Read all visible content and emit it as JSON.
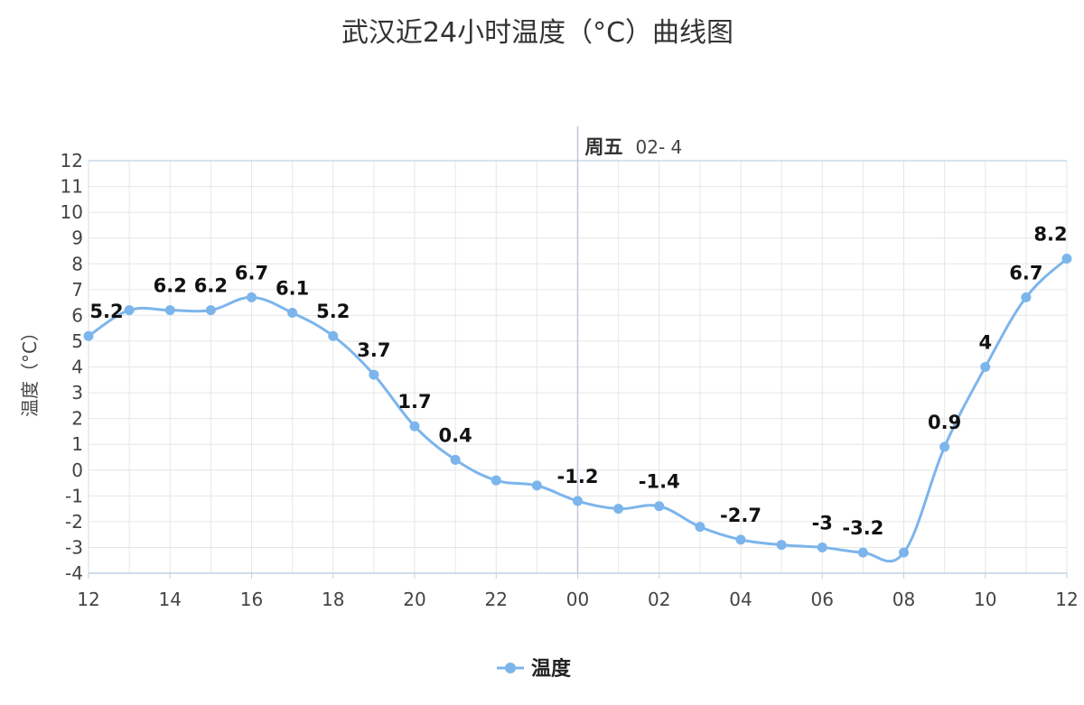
{
  "chart_data": {
    "type": "line",
    "title": "武汉近24小时温度（°C）曲线图",
    "ylabel": "温度（°C）",
    "xlabel": "",
    "ylim": [
      -4,
      12
    ],
    "yticks": [
      12,
      11,
      10,
      9,
      8,
      7,
      6,
      5,
      4,
      3,
      2,
      1,
      0,
      -1,
      -2,
      -3,
      -4
    ],
    "x": [
      "12",
      "13",
      "14",
      "15",
      "16",
      "17",
      "18",
      "19",
      "20",
      "21",
      "22",
      "23",
      "00",
      "01",
      "02",
      "03",
      "04",
      "05",
      "06",
      "07",
      "08",
      "09",
      "10",
      "11",
      "12"
    ],
    "xtick_labels": [
      "12",
      "14",
      "16",
      "18",
      "20",
      "22",
      "00",
      "02",
      "04",
      "06",
      "08",
      "10",
      "12"
    ],
    "day_marker": {
      "at": "00",
      "day": "周五",
      "date": "02- 4"
    },
    "grid": true,
    "legend": "bottom-center",
    "color": "#7cb5ec",
    "series": [
      {
        "name": "温度",
        "values": [
          5.2,
          6.2,
          6.2,
          6.2,
          6.7,
          6.1,
          5.2,
          3.7,
          1.7,
          0.4,
          -0.4,
          -0.6,
          -1.2,
          -1.5,
          -1.4,
          -2.2,
          -2.7,
          -2.9,
          -3.0,
          -3.2,
          -3.2,
          0.9,
          4.0,
          6.7,
          8.2
        ],
        "labels": [
          "5.2",
          "",
          "6.2",
          "6.2",
          "6.7",
          "6.1",
          "5.2",
          "3.7",
          "1.7",
          "0.4",
          "",
          "",
          "-1.2",
          "",
          "-1.4",
          "",
          "-2.7",
          "",
          "-3",
          "-3.2",
          "",
          "0.9",
          "4",
          "6.7",
          "8.2"
        ]
      }
    ]
  }
}
